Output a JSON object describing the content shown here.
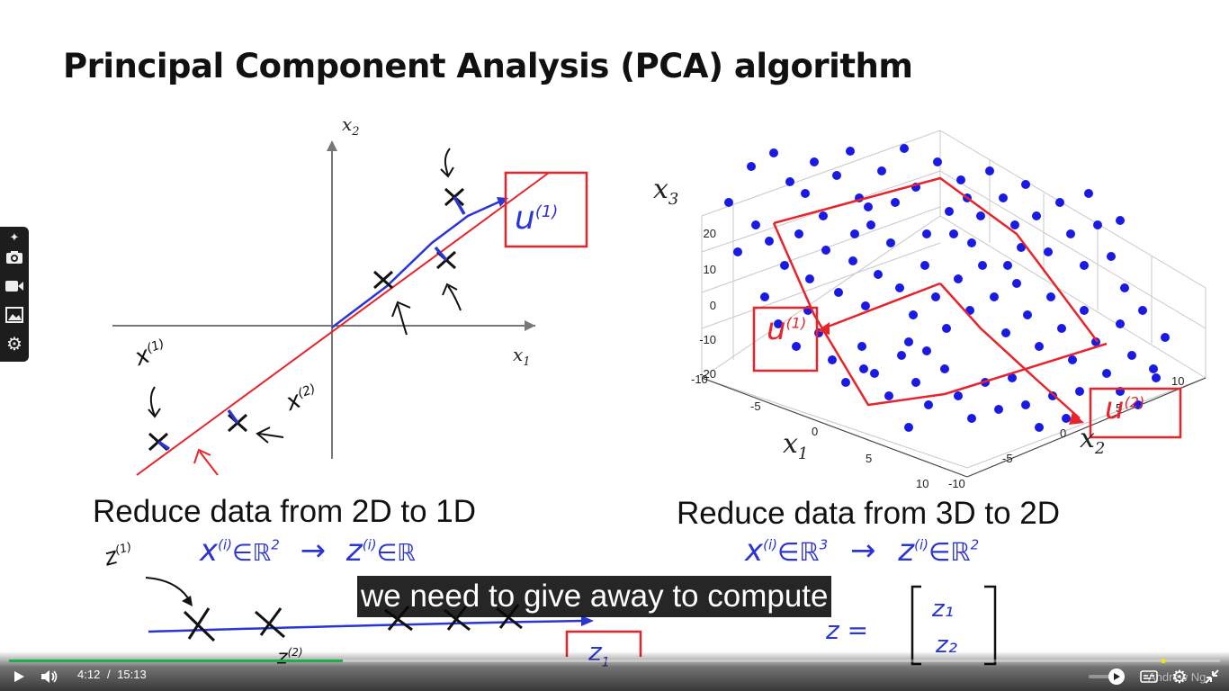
{
  "slide": {
    "title": "Principal Component Analysis (PCA) algorithm",
    "left_caption": "Reduce data from 2D to 1D",
    "right_caption": "Reduce data from 3D to 2D",
    "left_plot": {
      "x_axis_label": "x",
      "x_axis_sub": "1",
      "y_axis_label": "x",
      "y_axis_sub": "2"
    },
    "right_plot": {
      "x3_label": "x",
      "x3_sub": "3",
      "x1_label": "x",
      "x1_sub": "1",
      "x2_label": "x",
      "x2_sub": "2",
      "z_ticks": [
        "20",
        "10",
        "0",
        "-10",
        "-20"
      ],
      "x1_ticks": [
        "-10",
        "-5",
        "0",
        "5",
        "10"
      ],
      "x2_ticks": [
        "-10",
        "-5",
        "0",
        "5",
        "10"
      ]
    },
    "annotations": {
      "u1_left": "u",
      "u1_left_sup": "(1)",
      "x1_note": "x",
      "x1_note_sup": "(1)",
      "x2_note": "x",
      "x2_note_sup": "(2)",
      "u1_right": "u",
      "u1_right_sup": "(1)",
      "u2_right": "u",
      "u2_right_sup": "(2)",
      "formula_left": "x",
      "formula_left_sup": "(i)",
      "formula_left_in": "∈ℝ",
      "formula_left_pow": "2",
      "formula_left_arrow": "→",
      "formula_left_z": "z",
      "formula_left_z_sup": "(i)",
      "formula_left_z_in": "∈ℝ",
      "z1_note": "z",
      "z1_note_sup": "(1)",
      "z2_bottom": "z",
      "z2_bottom_sup": "(2)",
      "z_box": "z",
      "z_box_sub": "1",
      "formula_right": "x",
      "formula_right_sup": "(i)",
      "formula_right_in": "∈ℝ",
      "formula_right_pow": "3",
      "formula_right_arrow": "→",
      "formula_right_z": "z",
      "formula_right_z_sup": "(i)",
      "formula_right_z_in": "∈ℝ",
      "formula_right_z_pow": "2",
      "z_eq": "z =",
      "vec_z1": "z₁",
      "vec_z2": "z₂"
    }
  },
  "subtitle": "we need to give away to compute",
  "player": {
    "current_time": "4:12",
    "separator": "/",
    "duration": "15:13",
    "progress": 0.276,
    "watermark": "Andrew Ng"
  },
  "toolstrip": {
    "items": [
      "pin-icon",
      "camera-icon",
      "video-icon",
      "gallery-icon",
      "gear-icon"
    ]
  },
  "colors": {
    "ink_red": "#e8232a",
    "ink_blue": "#2b34d6",
    "progress_played": "#1fae4a",
    "subtitle_bg": "#080808"
  }
}
